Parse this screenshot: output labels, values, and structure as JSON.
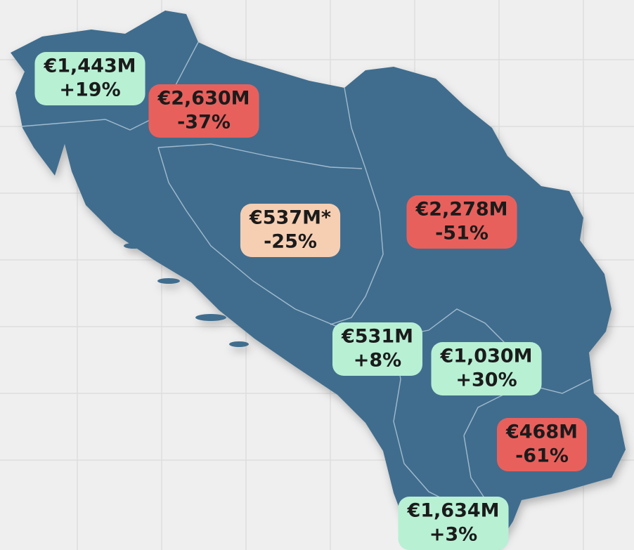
{
  "labels": [
    {
      "amount": "€1,443M",
      "change": "+19%",
      "color": "#b8f0d4"
    },
    {
      "amount": "€2,630M",
      "change": "-37%",
      "color": "#e8605c"
    },
    {
      "amount": "€537M*",
      "change": "-25%",
      "color": "#f6cfb3"
    },
    {
      "amount": "€2,278M",
      "change": "-51%",
      "color": "#e8605c"
    },
    {
      "amount": "€531M",
      "change": "+8%",
      "color": "#b8f0d4"
    },
    {
      "amount": "€1,030M",
      "change": "+30%",
      "color": "#b8f0d4"
    },
    {
      "amount": "€468M",
      "change": "-61%",
      "color": "#e8605c"
    },
    {
      "amount": "€1,634M",
      "change": "+3%",
      "color": "#b8f0d4"
    }
  ]
}
